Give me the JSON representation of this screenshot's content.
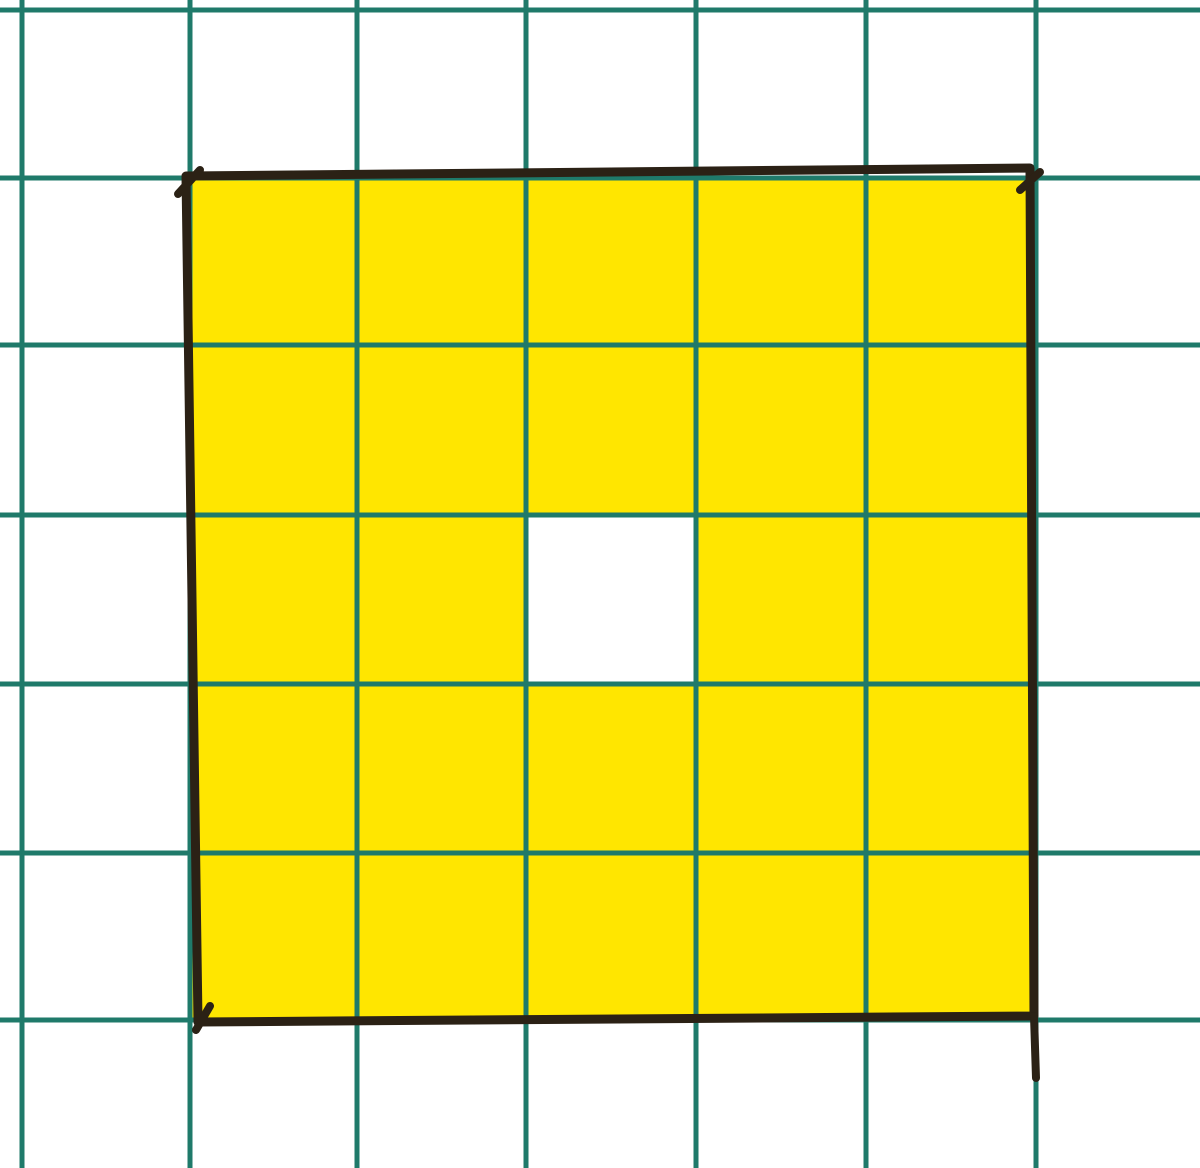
{
  "diagram": {
    "grid": {
      "line_color": "#1f7a6a",
      "paper_color": "#ffffff"
    },
    "square": {
      "columns": 5,
      "rows": 5,
      "fill_color": "#ffe600",
      "outline_color": "#2b2115",
      "cells": [
        [
          1,
          1,
          1,
          1,
          1
        ],
        [
          1,
          1,
          1,
          1,
          1
        ],
        [
          1,
          1,
          0,
          1,
          1
        ],
        [
          1,
          1,
          1,
          1,
          1
        ],
        [
          1,
          1,
          1,
          1,
          1
        ]
      ]
    }
  }
}
